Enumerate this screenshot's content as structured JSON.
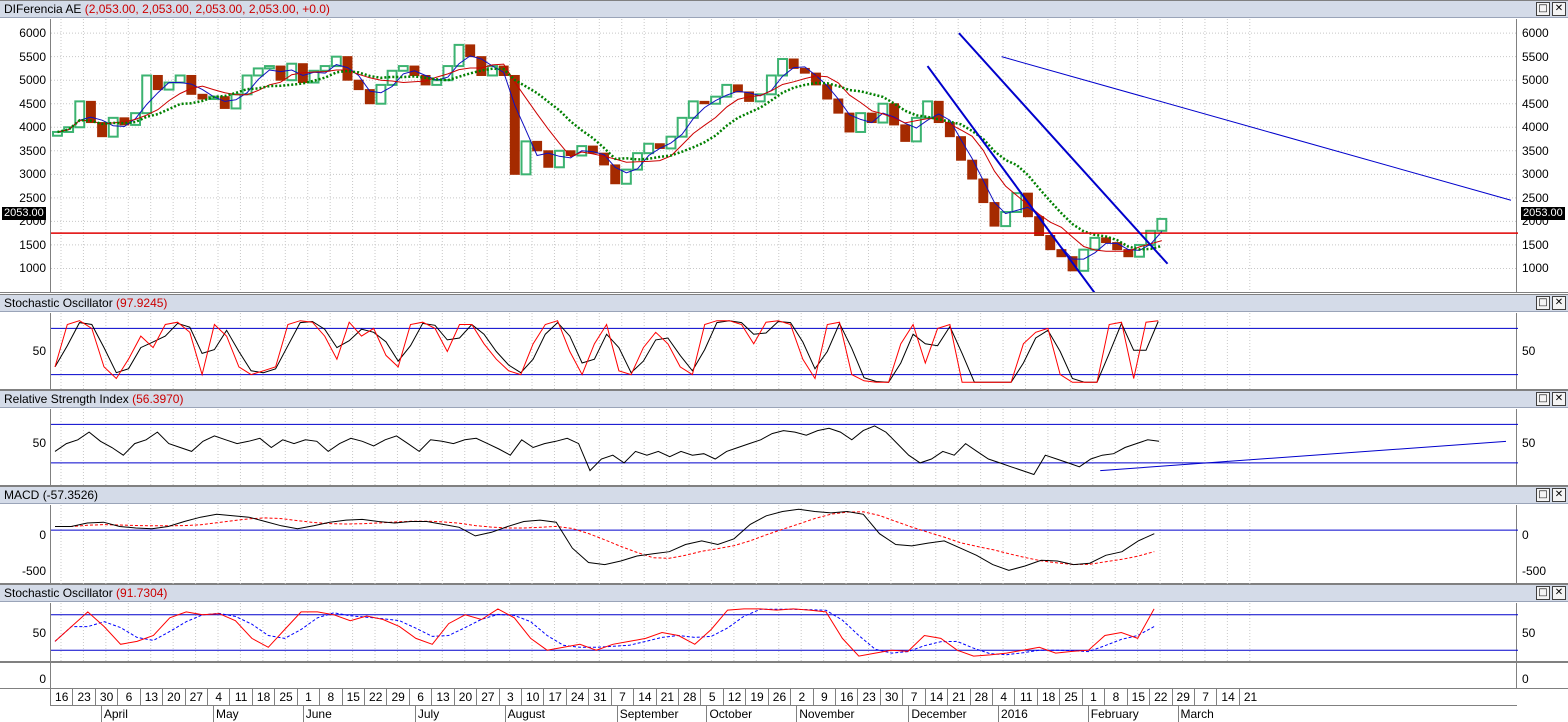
{
  "panes": [
    {
      "id": "price",
      "title": "DIFerencia AE",
      "param": "(2,053.00, 2,053.00, 2,053.00, 2,053.00, +0.0)",
      "param_color": "#cc0000"
    },
    {
      "id": "stoch1",
      "title": "Stochastic Oscillator",
      "param": "(97.9245)",
      "param_color": "#cc0000"
    },
    {
      "id": "rsi",
      "title": "Relative Strength Index",
      "param": "(56.3970)",
      "param_color": "#cc0000"
    },
    {
      "id": "macd",
      "title": "MACD",
      "param": "(-57.3526)",
      "param_color": "#000000"
    },
    {
      "id": "stoch2",
      "title": "Stochastic Oscillator",
      "param": "(91.7304)",
      "param_color": "#cc0000"
    }
  ],
  "window_buttons": {
    "restore": "□",
    "close": "✕"
  },
  "price_axis": [
    "6000",
    "5500",
    "5000",
    "4500",
    "4000",
    "3500",
    "3000",
    "2500",
    "2000",
    "1500",
    "1000"
  ],
  "last_price_tag": "2053.00",
  "stoch1_axis": [
    "50"
  ],
  "rsi_axis": [
    "50"
  ],
  "macd_axis": [
    "0",
    "-500"
  ],
  "stoch2_axis": [
    "50"
  ],
  "extra_pane_axis": [
    "0"
  ],
  "x_days": [
    "16",
    "23",
    "30",
    "6",
    "13",
    "20",
    "27",
    "4",
    "11",
    "18",
    "25",
    "1",
    "8",
    "15",
    "22",
    "29",
    "6",
    "13",
    "20",
    "27",
    "3",
    "10",
    "17",
    "24",
    "31",
    "7",
    "14",
    "21",
    "28",
    "5",
    "12",
    "19",
    "26",
    "2",
    "9",
    "16",
    "23",
    "30",
    "7",
    "14",
    "21",
    "28",
    "4",
    "11",
    "18",
    "25",
    "1",
    "8",
    "15",
    "22",
    "29",
    "7",
    "14",
    "21"
  ],
  "x_months": [
    {
      "label": "April",
      "index": 2
    },
    {
      "label": "May",
      "index": 7
    },
    {
      "label": "June",
      "index": 11
    },
    {
      "label": "July",
      "index": 16
    },
    {
      "label": "August",
      "index": 20
    },
    {
      "label": "September",
      "index": 25
    },
    {
      "label": "October",
      "index": 29
    },
    {
      "label": "November",
      "index": 33
    },
    {
      "label": "December",
      "index": 38
    },
    {
      "label": "2016",
      "index": 42
    },
    {
      "label": "February",
      "index": 46
    },
    {
      "label": "March",
      "index": 50
    }
  ],
  "colors": {
    "up_candle": "#3cb371",
    "down_candle": "#a52a00",
    "ma_fast": "#1010c0",
    "ma_mid": "#cc0000",
    "ma_slow": "#008000",
    "trend": "#0000cc",
    "support": "#e00000"
  },
  "chart_data": {
    "type": "line",
    "support_level": 1750,
    "last_value": 2053,
    "price_range": [
      500,
      6300
    ]
  }
}
